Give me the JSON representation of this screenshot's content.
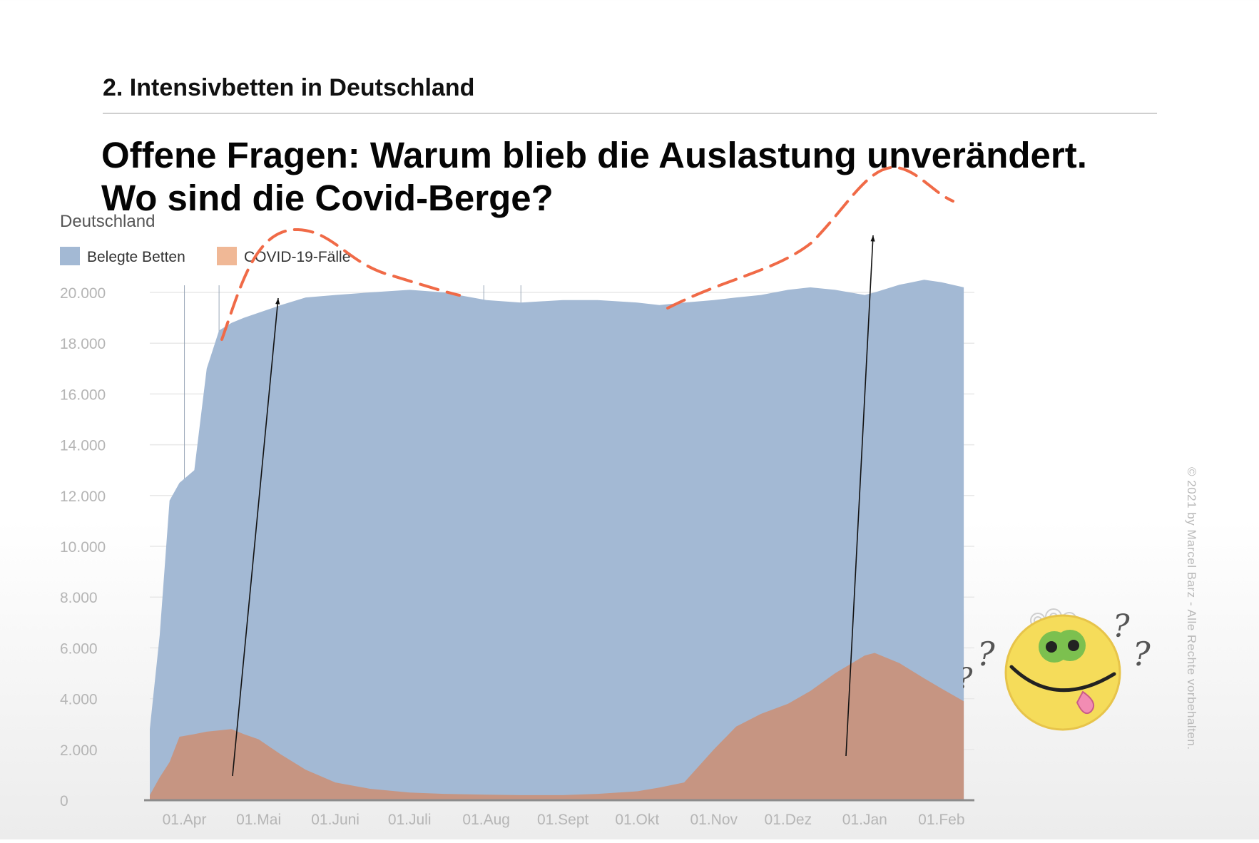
{
  "slide": {
    "section_title": "2. Intensivbetten in Deutschland",
    "headline_line1": "Offene Fragen: Warum blieb die Auslastung unverändert.",
    "headline_line2": "Wo sind die Covid-Berge?",
    "copyright": "© 2021 by Marcel Barz - Alle Rechte vorbehalten."
  },
  "colors": {
    "beds": "#a3b9d4",
    "covid": "#c69582",
    "annotation": "#f06a47",
    "grid": "#e8e8e8",
    "tick": "#b5b5b5"
  },
  "icons": [
    "confused-smiley-icon",
    "question-mark-icon"
  ],
  "chart_data": {
    "type": "area",
    "title": "Deutschland",
    "legend": [
      "Belegte Betten",
      "COVID-19-Fälle"
    ],
    "legend_position": "top-left",
    "grid": true,
    "ylim": [
      0,
      20000
    ],
    "y_ticks": [
      "20.000",
      "18.000",
      "16.000",
      "14.000",
      "12.000",
      "10.000",
      "8.000",
      "6.000",
      "4.000",
      "2.000",
      "0"
    ],
    "x_ticks": [
      "01.Apr",
      "01.Mai",
      "01.Juni",
      "01.Juli",
      "01.Aug",
      "01.Sept",
      "01.Okt",
      "01.Nov",
      "01.Dez",
      "01.Jan",
      "01.Feb"
    ],
    "x": [
      "2020-03-18",
      "2020-03-22",
      "2020-03-26",
      "2020-03-30",
      "2020-04-05",
      "2020-04-10",
      "2020-04-15",
      "2020-04-20",
      "2020-04-25",
      "2020-05-01",
      "2020-05-10",
      "2020-05-20",
      "2020-06-01",
      "2020-06-15",
      "2020-07-01",
      "2020-07-15",
      "2020-08-01",
      "2020-08-15",
      "2020-09-01",
      "2020-09-15",
      "2020-10-01",
      "2020-10-10",
      "2020-10-20",
      "2020-11-01",
      "2020-11-10",
      "2020-11-20",
      "2020-12-01",
      "2020-12-10",
      "2020-12-20",
      "2021-01-01",
      "2021-01-05",
      "2021-01-15",
      "2021-01-25",
      "2021-02-01",
      "2021-02-10"
    ],
    "series": [
      {
        "name": "Belegte Betten",
        "values": [
          2800,
          6500,
          11800,
          12500,
          13000,
          17000,
          18500,
          18800,
          19000,
          19200,
          19500,
          19800,
          19900,
          20000,
          20100,
          20000,
          19700,
          19600,
          19700,
          19700,
          19600,
          19500,
          19600,
          19700,
          19800,
          19900,
          20100,
          20200,
          20100,
          19900,
          20000,
          20300,
          20500,
          20400,
          20200
        ]
      },
      {
        "name": "COVID-19-Fälle",
        "values": [
          200,
          900,
          1500,
          2500,
          2600,
          2700,
          2750,
          2800,
          2600,
          2400,
          1800,
          1200,
          700,
          450,
          300,
          250,
          220,
          200,
          200,
          250,
          350,
          500,
          700,
          2000,
          2900,
          3400,
          3800,
          4300,
          5000,
          5700,
          5800,
          5400,
          4800,
          4400,
          3900
        ]
      }
    ]
  }
}
